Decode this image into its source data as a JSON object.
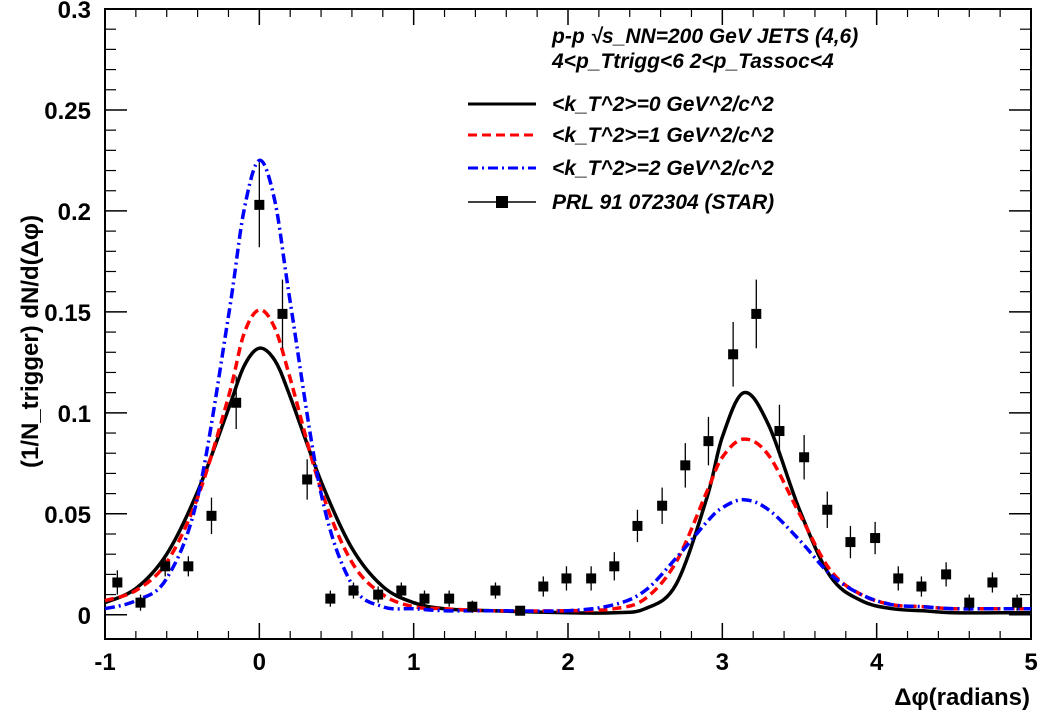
{
  "chart_data": {
    "type": "line",
    "title": "",
    "xlabel": "Δφ(radians)",
    "ylabel": "(1/N_trigger) dN/d(Δφ)",
    "xlim": [
      -1,
      5
    ],
    "ylim": [
      -0.012,
      0.3
    ],
    "x_ticks": [
      "-1",
      "0",
      "1",
      "2",
      "3",
      "4",
      "5"
    ],
    "y_ticks": [
      "0",
      "0.05",
      "0.1",
      "0.15",
      "0.2",
      "0.25",
      "0.3"
    ],
    "grid": false,
    "legend_position": "top-right",
    "annotations": [
      "p-p √s_NN=200 GeV JETS (4,6)",
      "4<p_Ttrigg<6     2<p_Tassoc<4"
    ],
    "series": [
      {
        "name": "<k_T^2>=0 GeV^2/c^2",
        "color": "#000000",
        "style": "solid",
        "x": [
          -1.0,
          -0.8,
          -0.6,
          -0.4,
          -0.2,
          -0.1,
          0.0,
          0.1,
          0.2,
          0.4,
          0.6,
          0.8,
          1.0,
          1.2,
          1.5,
          2.0,
          2.3,
          2.5,
          2.7,
          2.9,
          3.0,
          3.14,
          3.3,
          3.5,
          3.7,
          3.9,
          4.1,
          4.3,
          4.5,
          4.8,
          5.0
        ],
        "y": [
          0.006,
          0.013,
          0.03,
          0.061,
          0.102,
          0.123,
          0.132,
          0.126,
          0.108,
          0.066,
          0.033,
          0.014,
          0.006,
          0.003,
          0.002,
          0.001,
          0.001,
          0.003,
          0.015,
          0.058,
          0.088,
          0.11,
          0.094,
          0.052,
          0.019,
          0.007,
          0.003,
          0.002,
          0.001,
          0.001,
          0.001
        ]
      },
      {
        "name": "<k_T^2>=1 GeV^2/c^2",
        "color": "#ff0000",
        "style": "dashed",
        "x": [
          -1.0,
          -0.8,
          -0.6,
          -0.4,
          -0.2,
          -0.1,
          0.0,
          0.1,
          0.2,
          0.4,
          0.6,
          0.8,
          1.0,
          1.2,
          1.5,
          2.0,
          2.3,
          2.5,
          2.7,
          2.9,
          3.0,
          3.14,
          3.3,
          3.5,
          3.7,
          3.9,
          4.1,
          4.3,
          4.5,
          4.8,
          5.0
        ],
        "y": [
          0.007,
          0.012,
          0.026,
          0.058,
          0.108,
          0.139,
          0.151,
          0.142,
          0.117,
          0.062,
          0.026,
          0.01,
          0.004,
          0.003,
          0.002,
          0.002,
          0.003,
          0.008,
          0.026,
          0.061,
          0.078,
          0.087,
          0.079,
          0.05,
          0.022,
          0.01,
          0.005,
          0.004,
          0.003,
          0.003,
          0.003
        ]
      },
      {
        "name": "<k_T^2>=2 GeV^2/c^2",
        "color": "#0000ff",
        "style": "dashdot",
        "x": [
          -1.0,
          -0.8,
          -0.6,
          -0.4,
          -0.2,
          -0.1,
          0.0,
          0.1,
          0.2,
          0.4,
          0.6,
          0.8,
          1.0,
          1.2,
          1.5,
          2.0,
          2.3,
          2.5,
          2.7,
          2.9,
          3.0,
          3.14,
          3.3,
          3.5,
          3.7,
          3.9,
          4.1,
          4.3,
          4.5,
          4.8,
          5.0
        ],
        "y": [
          0.003,
          0.007,
          0.018,
          0.058,
          0.148,
          0.2,
          0.225,
          0.205,
          0.155,
          0.06,
          0.015,
          0.004,
          0.003,
          0.002,
          0.002,
          0.002,
          0.005,
          0.012,
          0.028,
          0.046,
          0.053,
          0.057,
          0.052,
          0.037,
          0.02,
          0.01,
          0.005,
          0.004,
          0.003,
          0.003,
          0.003
        ]
      },
      {
        "name": "PRL 91 072304 (STAR)",
        "color": "#000000",
        "style": "markers",
        "x": [
          -0.92,
          -0.77,
          -0.61,
          -0.46,
          -0.31,
          -0.15,
          0.0,
          0.15,
          0.31,
          0.46,
          0.61,
          0.77,
          0.92,
          1.07,
          1.23,
          1.38,
          1.53,
          1.69,
          1.84,
          1.99,
          2.15,
          2.3,
          2.45,
          2.61,
          2.76,
          2.91,
          3.07,
          3.22,
          3.37,
          3.53,
          3.68,
          3.83,
          3.99,
          4.14,
          4.29,
          4.45,
          4.6,
          4.75,
          4.91
        ],
        "y": [
          0.016,
          0.006,
          0.024,
          0.024,
          0.049,
          0.105,
          0.203,
          0.149,
          0.067,
          0.008,
          0.012,
          0.01,
          0.012,
          0.008,
          0.008,
          0.004,
          0.012,
          0.002,
          0.014,
          0.018,
          0.018,
          0.024,
          0.044,
          0.054,
          0.074,
          0.086,
          0.129,
          0.149,
          0.091,
          0.078,
          0.052,
          0.036,
          0.038,
          0.018,
          0.014,
          0.02,
          0.006,
          0.016,
          0.006
        ],
        "err": [
          0.006,
          0.004,
          0.005,
          0.005,
          0.009,
          0.013,
          0.021,
          0.017,
          0.01,
          0.004,
          0.004,
          0.004,
          0.004,
          0.004,
          0.004,
          0.003,
          0.004,
          0.002,
          0.005,
          0.006,
          0.006,
          0.007,
          0.008,
          0.009,
          0.011,
          0.012,
          0.016,
          0.017,
          0.013,
          0.011,
          0.009,
          0.008,
          0.008,
          0.006,
          0.005,
          0.006,
          0.004,
          0.005,
          0.004
        ]
      }
    ]
  }
}
